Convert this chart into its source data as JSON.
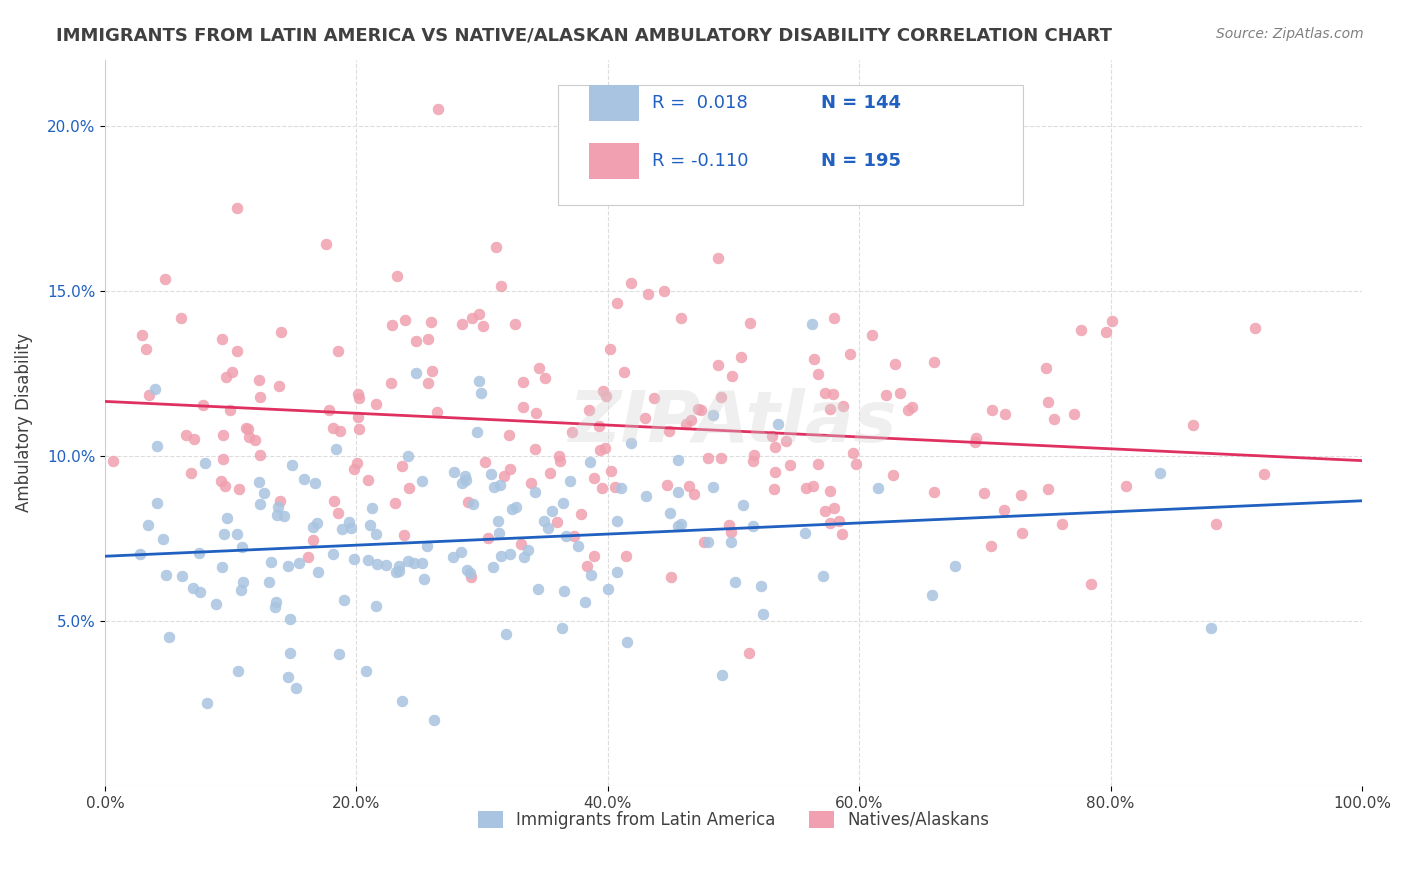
{
  "title": "IMMIGRANTS FROM LATIN AMERICA VS NATIVE/ALASKAN AMBULATORY DISABILITY CORRELATION CHART",
  "source": "Source: ZipAtlas.com",
  "xlabel_bottom": "",
  "ylabel": "Ambulatory Disability",
  "x_min": 0.0,
  "x_max": 1.0,
  "y_min": 0.0,
  "y_max": 0.22,
  "x_ticks": [
    0.0,
    0.2,
    0.4,
    0.6,
    0.8,
    1.0
  ],
  "x_tick_labels": [
    "0.0%",
    "20.0%",
    "40.0%",
    "60.0%",
    "80.0%",
    "100.0%"
  ],
  "y_ticks": [
    0.05,
    0.1,
    0.15,
    0.2
  ],
  "y_tick_labels": [
    "5.0%",
    "10.0%",
    "15.0%",
    "20.0%"
  ],
  "blue_R": 0.018,
  "blue_N": 144,
  "pink_R": -0.11,
  "pink_N": 195,
  "blue_color": "#a8c4e0",
  "pink_color": "#f0a0b0",
  "blue_line_color": "#2060c0",
  "pink_line_color": "#e03060",
  "blue_label": "Immigrants from Latin America",
  "pink_label": "Natives/Alaskans",
  "watermark": "ZIPAtlas",
  "background_color": "#ffffff",
  "grid_color": "#dddddd",
  "title_color": "#404040",
  "source_color": "#808080",
  "legend_R_color": "#2060c0",
  "legend_N_color": "#2060c0"
}
